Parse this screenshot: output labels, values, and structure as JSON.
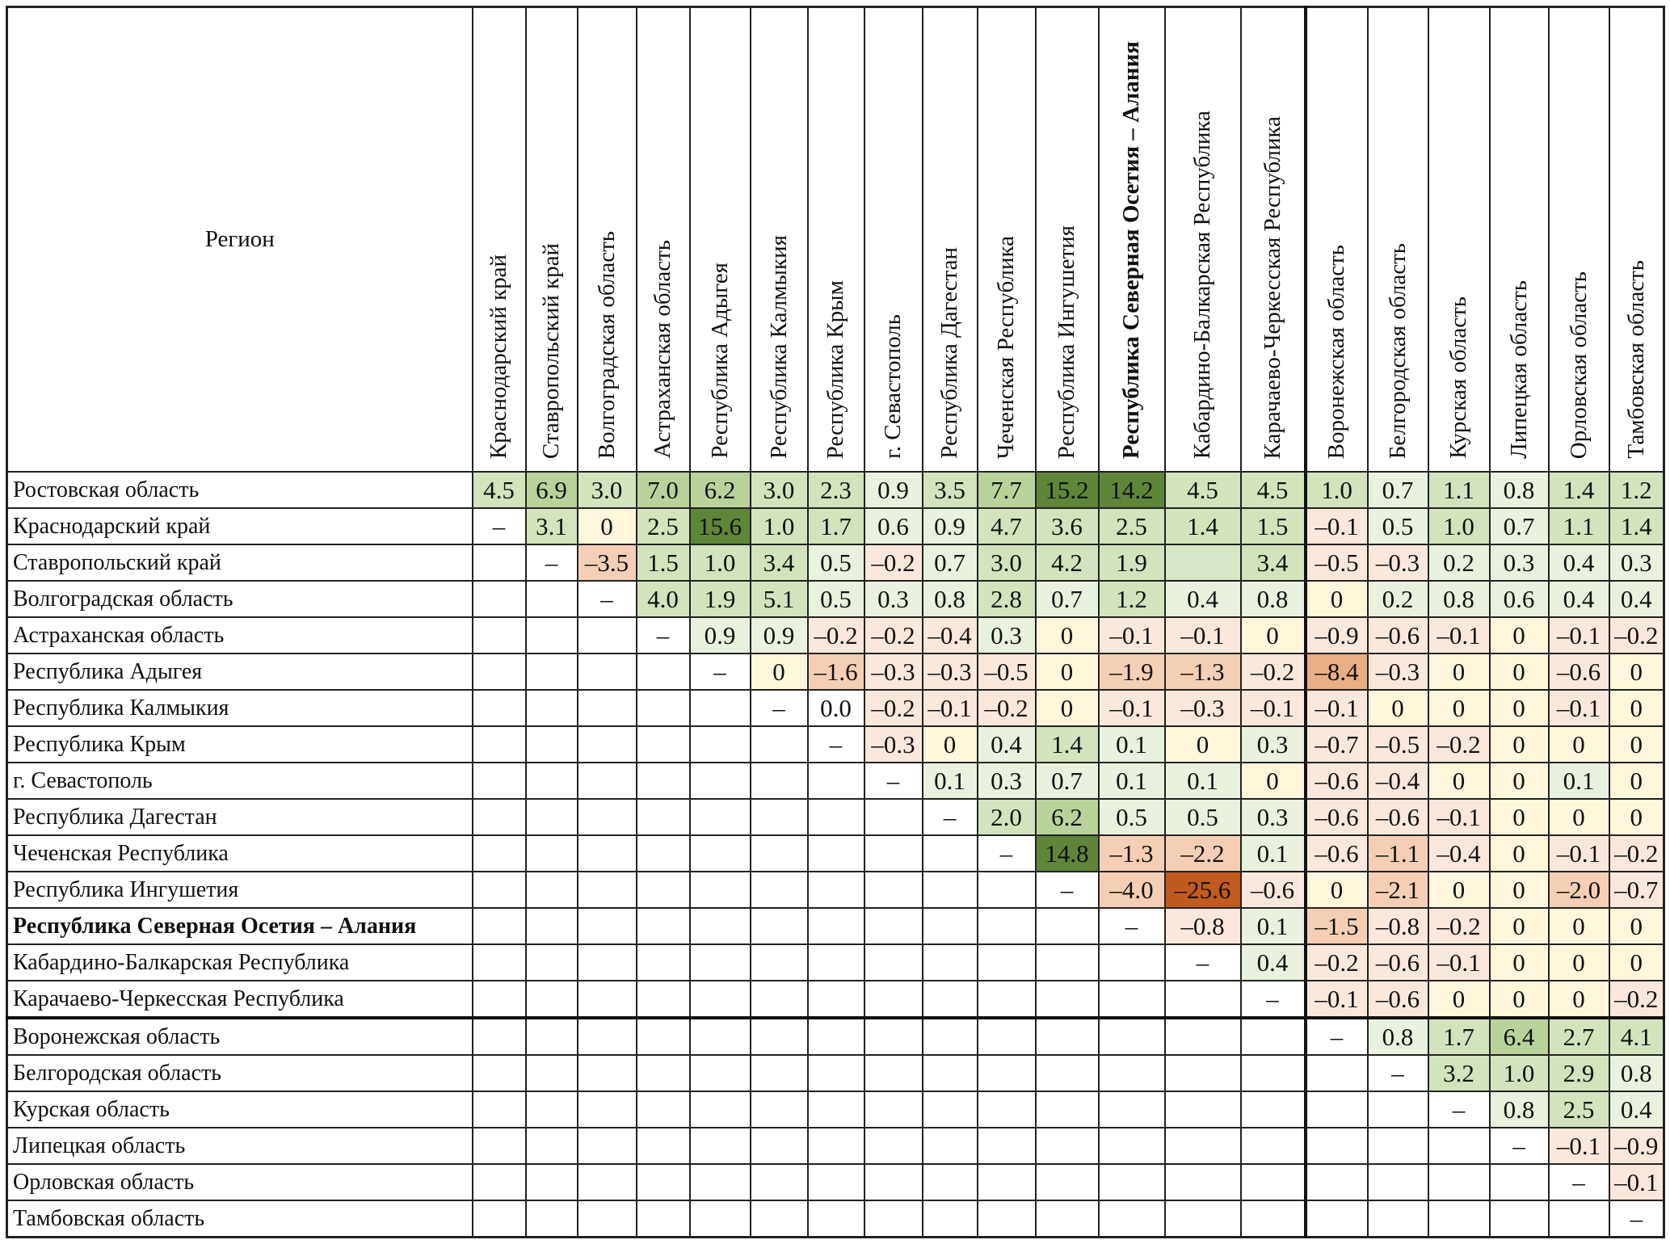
{
  "corner_label": "Регион",
  "columns": [
    "Краснодарский край",
    "Ставропольский край",
    "Волгоградская область",
    "Астраханская область",
    "Республика Адыгея",
    "Республика Калмыкия",
    "Республика Крым",
    "г. Севастополь",
    "Республика Дагестан",
    "Чеченская Республика",
    "Республика Ингушетия",
    "Республика Северная Осетия – Алания",
    "Кабардино-Балкарская Республика",
    "Карачаево-Черкесская Республика",
    "Воронежская область",
    "Белгородская область",
    "Курская область",
    "Липецкая область",
    "Орловская область",
    "Тамбовская область"
  ],
  "rows": [
    {
      "label": "Ростовская область",
      "values": [
        "4.5",
        "6.9",
        "3.0",
        "7.0",
        "6.2",
        "3.0",
        "2.3",
        "0.9",
        "3.5",
        "7.7",
        "15.2",
        "14.2",
        "4.5",
        "4.5",
        "1.0",
        "0.7",
        "1.1",
        "0.8",
        "1.4",
        "1.2"
      ]
    },
    {
      "label": "Краснодарский край",
      "values": [
        "–",
        "3.1",
        "0",
        "2.5",
        "15.6",
        "1.0",
        "1.7",
        "0.6",
        "0.9",
        "4.7",
        "3.6",
        "2.5",
        "1.4",
        "1.5",
        "–0.1",
        "0.5",
        "1.0",
        "0.7",
        "1.1",
        "1.4"
      ]
    },
    {
      "label": "Ставропольский край",
      "values": [
        "",
        "–",
        "–3.5",
        "1.5",
        "1.0",
        "3.4",
        "0.5",
        "–0.2",
        "0.7",
        "3.0",
        "4.2",
        "1.9",
        "",
        "3.4",
        "–0.5",
        "–0.3",
        "0.2",
        "0.3",
        "0.4",
        "0.3"
      ]
    },
    {
      "label": "Волгоградская область",
      "values": [
        "",
        "",
        "–",
        "4.0",
        "1.9",
        "5.1",
        "0.5",
        "0.3",
        "0.8",
        "2.8",
        "0.7",
        "1.2",
        "0.4",
        "0.8",
        "0",
        "0.2",
        "0.8",
        "0.6",
        "0.4",
        "0.4"
      ]
    },
    {
      "label": "Астраханская область",
      "values": [
        "",
        "",
        "",
        "–",
        "0.9",
        "0.9",
        "–0.2",
        "–0.2",
        "–0.4",
        "0.3",
        "0",
        "–0.1",
        "–0.1",
        "0",
        "–0.9",
        "–0.6",
        "–0.1",
        "0",
        "–0.1",
        "–0.2"
      ]
    },
    {
      "label": "Республика Адыгея",
      "values": [
        "",
        "",
        "",
        "",
        "–",
        "0",
        "–1.6",
        "–0.3",
        "–0.3",
        "–0.5",
        "0",
        "–1.9",
        "–1.3",
        "–0.2",
        "–8.4",
        "–0.3",
        "0",
        "0",
        "–0.6",
        "0"
      ]
    },
    {
      "label": "Республика Калмыкия",
      "values": [
        "",
        "",
        "",
        "",
        "",
        "–",
        "0.0",
        "–0.2",
        "–0.1",
        "–0.2",
        "0",
        "–0.1",
        "–0.3",
        "–0.1",
        "–0.1",
        "0",
        "0",
        "0",
        "–0.1",
        "0"
      ]
    },
    {
      "label": "Республика Крым",
      "values": [
        "",
        "",
        "",
        "",
        "",
        "",
        "–",
        "–0.3",
        "0",
        "0.4",
        "1.4",
        "0.1",
        "0",
        "0.3",
        "–0.7",
        "–0.5",
        "–0.2",
        "0",
        "0",
        "0"
      ]
    },
    {
      "label": "г. Севастополь",
      "values": [
        "",
        "",
        "",
        "",
        "",
        "",
        "",
        "–",
        "0.1",
        "0.3",
        "0.7",
        "0.1",
        "0.1",
        "0",
        "–0.6",
        "–0.4",
        "0",
        "0",
        "0.1",
        "0"
      ]
    },
    {
      "label": "Республика Дагестан",
      "values": [
        "",
        "",
        "",
        "",
        "",
        "",
        "",
        "",
        "–",
        "2.0",
        "6.2",
        "0.5",
        "0.5",
        "0.3",
        "–0.6",
        "–0.6",
        "–0.1",
        "0",
        "0",
        "0"
      ]
    },
    {
      "label": "Чеченская Республика",
      "values": [
        "",
        "",
        "",
        "",
        "",
        "",
        "",
        "",
        "",
        "–",
        "14.8",
        "–1.3",
        "–2.2",
        "0.1",
        "–0.6",
        "–1.1",
        "–0.4",
        "0",
        "–0.1",
        "–0.2"
      ]
    },
    {
      "label": "Республика Ингушетия",
      "values": [
        "",
        "",
        "",
        "",
        "",
        "",
        "",
        "",
        "",
        "",
        "–",
        "–4.0",
        "–25.6",
        "–0.6",
        "0",
        "–2.1",
        "0",
        "0",
        "–2.0",
        "–0.7"
      ]
    },
    {
      "label": "Республика Северная Осетия – Алания",
      "values": [
        "",
        "",
        "",
        "",
        "",
        "",
        "",
        "",
        "",
        "",
        "",
        "–",
        "–0.8",
        "0.1",
        "–1.5",
        "–0.8",
        "–0.2",
        "0",
        "0",
        "0"
      ]
    },
    {
      "label": "Кабардино-Балкарская Республика",
      "values": [
        "",
        "",
        "",
        "",
        "",
        "",
        "",
        "",
        "",
        "",
        "",
        "",
        "–",
        "0.4",
        "–0.2",
        "–0.6",
        "–0.1",
        "0",
        "0",
        "0"
      ]
    },
    {
      "label": "Карачаево-Черкесская Республика",
      "values": [
        "",
        "",
        "",
        "",
        "",
        "",
        "",
        "",
        "",
        "",
        "",
        "",
        "",
        "–",
        "–0.1",
        "–0.6",
        "0",
        "0",
        "0",
        "–0.2"
      ]
    },
    {
      "label": "Воронежская область",
      "values": [
        "",
        "",
        "",
        "",
        "",
        "",
        "",
        "",
        "",
        "",
        "",
        "",
        "",
        "",
        "–",
        "0.8",
        "1.7",
        "6.4",
        "2.7",
        "4.1"
      ]
    },
    {
      "label": "Белгородская область",
      "values": [
        "",
        "",
        "",
        "",
        "",
        "",
        "",
        "",
        "",
        "",
        "",
        "",
        "",
        "",
        "",
        "–",
        "3.2",
        "1.0",
        "2.9",
        "0.8"
      ]
    },
    {
      "label": "Курская область",
      "values": [
        "",
        "",
        "",
        "",
        "",
        "",
        "",
        "",
        "",
        "",
        "",
        "",
        "",
        "",
        "",
        "",
        "–",
        "0.8",
        "2.5",
        "0.4"
      ]
    },
    {
      "label": "Липецкая область",
      "values": [
        "",
        "",
        "",
        "",
        "",
        "",
        "",
        "",
        "",
        "",
        "",
        "",
        "",
        "",
        "",
        "",
        "",
        "–",
        "–0.1",
        "–0.9"
      ]
    },
    {
      "label": "Орловская область",
      "values": [
        "",
        "",
        "",
        "",
        "",
        "",
        "",
        "",
        "",
        "",
        "",
        "",
        "",
        "",
        "",
        "",
        "",
        "",
        "–",
        "–0.1"
      ]
    },
    {
      "label": "Тамбовская область",
      "values": [
        "",
        "",
        "",
        "",
        "",
        "",
        "",
        "",
        "",
        "",
        "",
        "",
        "",
        "",
        "",
        "",
        "",
        "",
        "",
        "–"
      ]
    }
  ],
  "shaded_blank_cells": [
    {
      "row": 2,
      "col": 12,
      "color": "#d7e6c4"
    }
  ],
  "color_scale": {
    "strong_positive": "#5f8539",
    "high_positive": "#b9d29a",
    "mid_positive": "#d2e3bd",
    "low_positive": "#e9f1df",
    "zero": "#fff6dc",
    "low_negative": "#fbe8dd",
    "mid_negative": "#f4cfb6",
    "high_negative": "#e9ae83",
    "strong_negative": "#c15a1f"
  }
}
